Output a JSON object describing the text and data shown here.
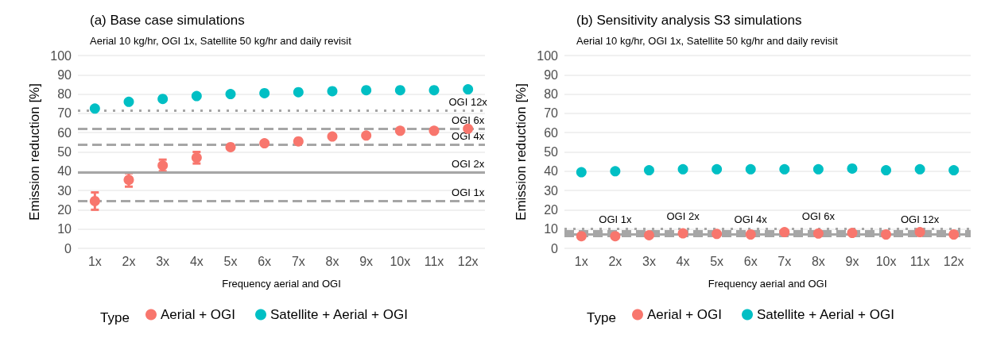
{
  "chart_data": [
    {
      "type": "scatter",
      "title": "(a) Base case simulations",
      "subtitle": "Aerial 10 kg/hr, OGI 1x, Satellite 50 kg/hr and daily revisit",
      "xlabel": "Frequency aerial and OGI",
      "ylabel": "Emission reduction [%]",
      "legend_title": "Type",
      "categories": [
        "1x",
        "2x",
        "3x",
        "4x",
        "5x",
        "6x",
        "7x",
        "8x",
        "9x",
        "10x",
        "11x",
        "12x"
      ],
      "series": [
        {
          "name": "Aerial + OGI",
          "color": "#f8766d",
          "values": [
            24.5,
            35.5,
            43,
            47,
            52.5,
            54.5,
            55.5,
            58,
            58.5,
            61,
            61,
            62
          ],
          "errors": [
            [
              20,
              29
            ],
            [
              32,
              39
            ],
            [
              40,
              46
            ],
            [
              44,
              50
            ],
            null,
            null,
            null,
            null,
            null,
            null,
            null,
            null
          ]
        },
        {
          "name": "Satellite + Aerial + OGI",
          "color": "#00bfc4",
          "values": [
            72.5,
            76,
            77.5,
            79,
            80,
            80.5,
            81,
            81.5,
            82,
            82,
            82,
            82.5
          ]
        }
      ],
      "ref_lines": [
        {
          "axis": "y",
          "value": 24.5,
          "label": "OGI 1x",
          "color": "#a6a6a6",
          "line_style": "dashed"
        },
        {
          "axis": "y",
          "value": 39.5,
          "label": "OGI 2x",
          "color": "#a6a6a6",
          "line_style": "solid"
        },
        {
          "axis": "y",
          "value": 54,
          "label": "OGI 4x",
          "color": "#a6a6a6",
          "line_style": "dashed"
        },
        {
          "axis": "y",
          "value": 62,
          "label": "OGI 6x",
          "color": "#a6a6a6",
          "line_style": "dashed"
        },
        {
          "axis": "y",
          "value": 71.5,
          "label": "OGI 12x",
          "color": "#a6a6a6",
          "line_style": "dotted"
        }
      ],
      "ylim": [
        0,
        100
      ],
      "yticks": [
        0,
        10,
        20,
        30,
        40,
        50,
        60,
        70,
        80,
        90,
        100
      ],
      "grid": "y",
      "legend": "bottom",
      "marker": "circle"
    },
    {
      "type": "scatter",
      "title": "(b) Sensitivity analysis S3 simulations",
      "subtitle": "Aerial 10 kg/hr, OGI 1x, Satellite 50 kg/hr and daily revisit",
      "xlabel": "Frequency aerial and OGI",
      "ylabel": "Emission reduction [%]",
      "legend_title": "Type",
      "categories": [
        "1x",
        "2x",
        "3x",
        "4x",
        "5x",
        "6x",
        "7x",
        "8x",
        "9x",
        "10x",
        "11x",
        "12x"
      ],
      "series": [
        {
          "name": "Aerial + OGI",
          "color": "#f8766d",
          "values": [
            6.3,
            6.3,
            6.8,
            7.8,
            7.5,
            7.2,
            8.4,
            7.7,
            8,
            7.2,
            8.4,
            7.2
          ]
        },
        {
          "name": "Satellite + Aerial + OGI",
          "color": "#00bfc4",
          "values": [
            39.5,
            40,
            40.5,
            41,
            41,
            41,
            41,
            41,
            41.4,
            40.5,
            41,
            40.5
          ]
        }
      ],
      "ref_lines": [
        {
          "axis": "y",
          "value": 6.5,
          "label": "OGI 1x",
          "color": "#a6a6a6",
          "line_style": "dashed"
        },
        {
          "axis": "y",
          "value": 7.5,
          "label": "OGI 2x",
          "color": "#a6a6a6",
          "line_style": "solid"
        },
        {
          "axis": "y",
          "value": 8.5,
          "label": "OGI 4x",
          "color": "#a6a6a6",
          "line_style": "dashed"
        },
        {
          "axis": "y",
          "value": 9,
          "label": "OGI 6x",
          "color": "#a6a6a6",
          "line_style": "dashed"
        },
        {
          "axis": "y",
          "value": 10,
          "label": "OGI 12x",
          "color": "#a6a6a6",
          "line_style": "dotted"
        }
      ],
      "ylim": [
        0,
        100
      ],
      "yticks": [
        0,
        10,
        20,
        30,
        40,
        50,
        60,
        70,
        80,
        90,
        100
      ],
      "grid": "y",
      "legend": "bottom",
      "marker": "circle"
    }
  ]
}
